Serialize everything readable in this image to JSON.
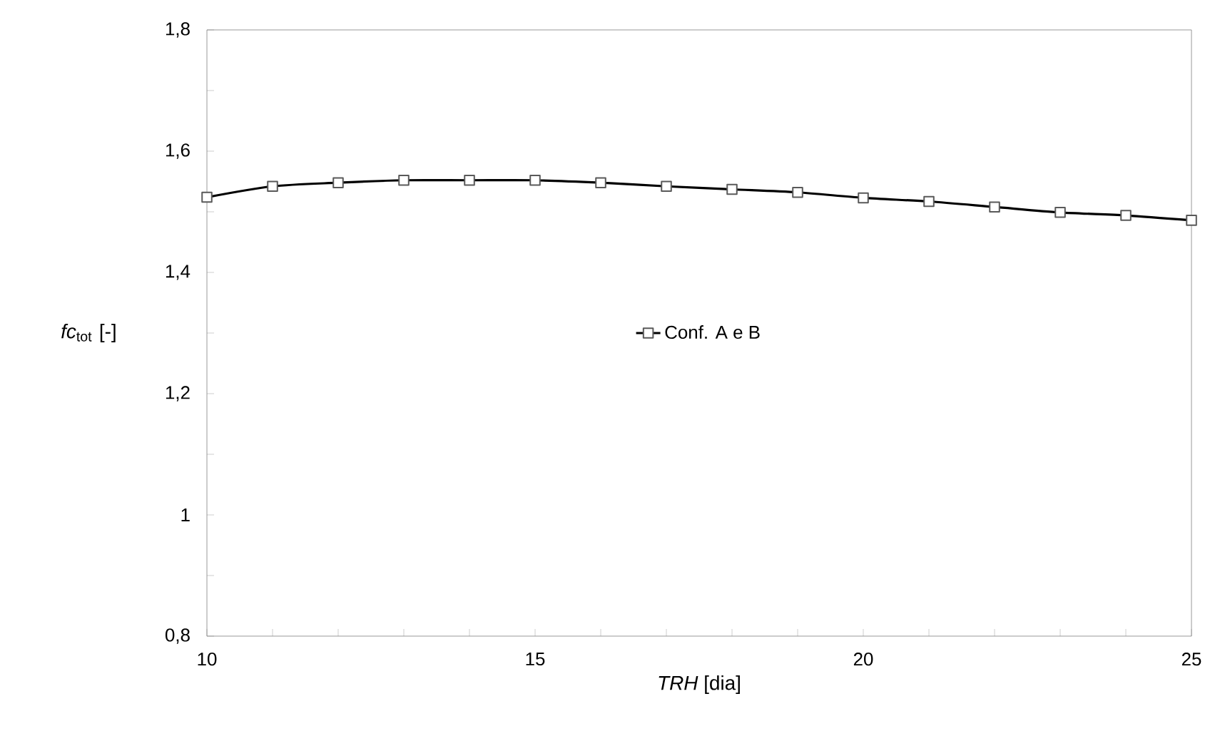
{
  "chart_data": {
    "type": "line",
    "xlabel": "*TRH* [dia]",
    "ylabel": "*fc*$_{tot}$ [-]",
    "x": [
      10,
      11,
      12,
      13,
      14,
      15,
      16,
      17,
      18,
      19,
      20,
      21,
      22,
      23,
      24,
      25
    ],
    "series": [
      {
        "name": "Conf. A e B",
        "color": "#000000",
        "values": [
          1.524,
          1.542,
          1.548,
          1.552,
          1.552,
          1.552,
          1.548,
          1.542,
          1.537,
          1.532,
          1.523,
          1.517,
          1.508,
          1.499,
          1.494,
          1.486
        ]
      }
    ],
    "xlim": [
      10,
      25
    ],
    "ylim": [
      0.8,
      1.8
    ],
    "xticks": [
      10,
      {
        "value": 11,
        "label": null
      },
      {
        "value": 12,
        "label": null
      },
      {
        "value": 13,
        "label": null
      },
      {
        "value": 14,
        "label": null
      },
      15,
      {
        "value": 16,
        "label": null
      },
      {
        "value": 17,
        "label": null
      },
      {
        "value": 18,
        "label": null
      },
      {
        "value": 19,
        "label": null
      },
      20,
      {
        "value": 21,
        "label": null
      },
      {
        "value": 22,
        "label": null
      },
      {
        "value": 23,
        "label": null
      },
      {
        "value": 24,
        "label": null
      },
      25
    ],
    "yticks": [
      {
        "value": 0.8,
        "label": "0,8"
      },
      {
        "value": 0.9,
        "label": null
      },
      1,
      {
        "value": 1.1,
        "label": null
      },
      {
        "value": 1.2,
        "label": "1,2"
      },
      {
        "value": 1.3,
        "label": null
      },
      {
        "value": 1.4,
        "label": "1,4"
      },
      {
        "value": 1.5,
        "label": null
      },
      {
        "value": 1.6,
        "label": "1,6"
      },
      {
        "value": 1.7,
        "label": null
      },
      {
        "value": 1.8,
        "label": "1,8"
      }
    ],
    "legend": "center",
    "marker": "square",
    "line_style": "solid",
    "grid": false
  }
}
